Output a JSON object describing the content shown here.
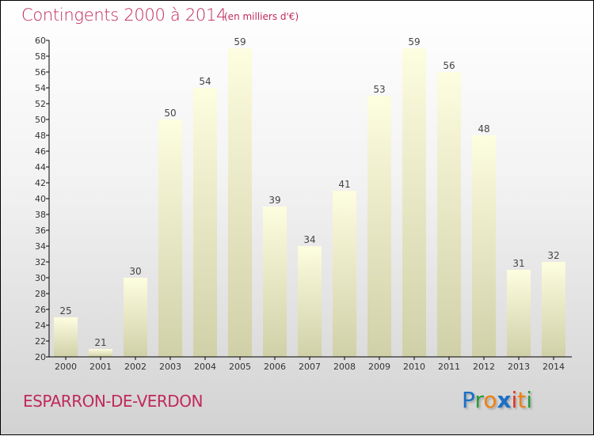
{
  "chart_data": {
    "type": "bar",
    "title": "Contingents 2000 à 2014",
    "subtitle": "(en milliers d'€)",
    "categories": [
      "2000",
      "2001",
      "2002",
      "2003",
      "2004",
      "2005",
      "2006",
      "2007",
      "2008",
      "2009",
      "2010",
      "2011",
      "2012",
      "2013",
      "2014"
    ],
    "values": [
      25,
      21,
      30,
      50,
      54,
      59,
      39,
      34,
      41,
      53,
      59,
      56,
      48,
      31,
      32
    ],
    "xlabel": "",
    "ylabel": "",
    "ylim": [
      20,
      60
    ],
    "yticks": [
      20,
      22,
      24,
      26,
      28,
      30,
      32,
      34,
      36,
      38,
      40,
      42,
      44,
      46,
      48,
      50,
      52,
      54,
      56,
      58,
      60
    ],
    "grid": false,
    "legend": "none"
  },
  "footer": {
    "commune": "ESPARRON-DE-VERDON",
    "logo": {
      "p": "P",
      "r": "r",
      "o": "o",
      "x": "x",
      "i1": "i",
      "t": "t",
      "i2": "i"
    }
  },
  "colors": {
    "title": "#c0295a",
    "bar_top": "#fdfde0",
    "bar_bottom": "#d0d0a8"
  }
}
